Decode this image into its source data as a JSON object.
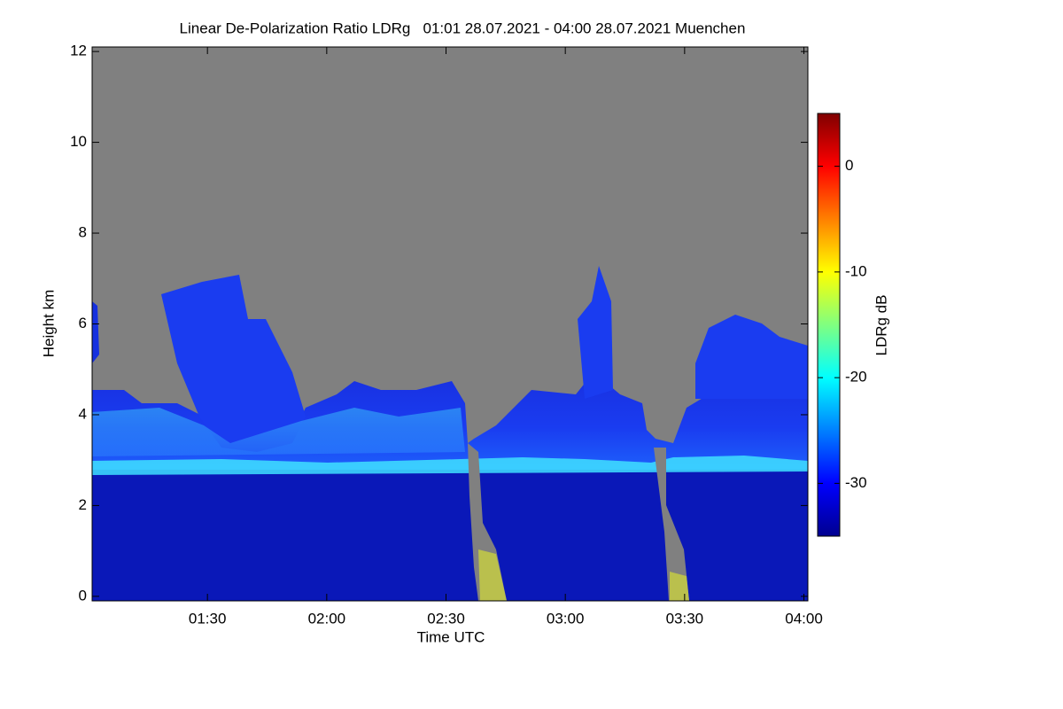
{
  "chart_data": {
    "type": "heatmap",
    "title": "Linear De-Polarization Ratio LDRg   01:01 28.07.2021 - 04:00 28.07.2021 Muenchen",
    "xlabel": "Time UTC",
    "ylabel": "Height km",
    "colorbar_label": "LDRg dB",
    "xlim": [
      61,
      241
    ],
    "xticks": [
      {
        "value": 90,
        "label": "01:30"
      },
      {
        "value": 120,
        "label": "02:00"
      },
      {
        "value": 150,
        "label": "02:30"
      },
      {
        "value": 180,
        "label": "03:00"
      },
      {
        "value": 210,
        "label": "03:30"
      },
      {
        "value": 240,
        "label": "04:00"
      }
    ],
    "ylim": [
      -0.1,
      12.1
    ],
    "yticks": [
      0,
      2,
      4,
      6,
      8,
      10,
      12
    ],
    "clim": [
      -35,
      5
    ],
    "cticks": [
      0,
      -10,
      -20,
      -30
    ],
    "colormap": "jet"
  }
}
